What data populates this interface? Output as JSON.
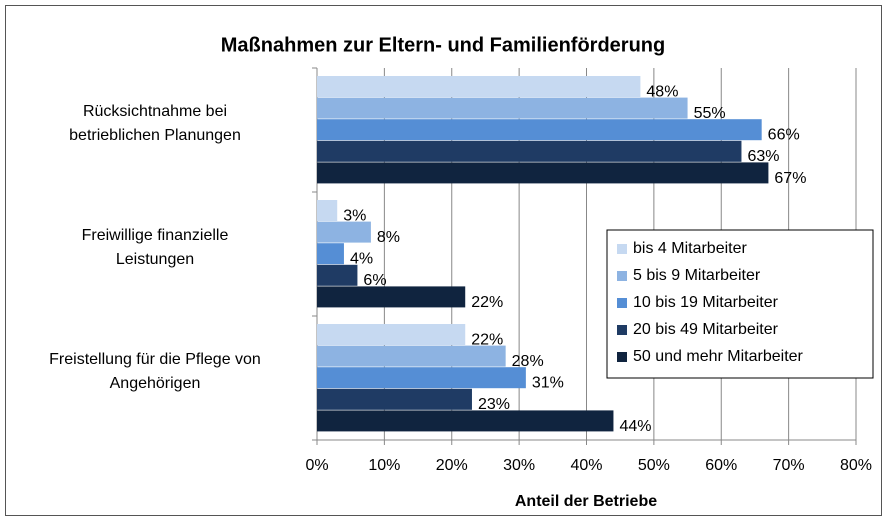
{
  "chart_data": {
    "type": "barh",
    "title": "Maßnahmen zur Eltern- und Familienförderung",
    "x_label": "Anteil der Betriebe",
    "categories": [
      "Rücksichtnahme bei\nbetrieblichen Planungen",
      "Freiwillige finanzielle\nLeistungen",
      "Freistellung für die Pflege von\nAngehörigen"
    ],
    "series": [
      {
        "name": "bis 4 Mitarbeiter",
        "color": "#c6d9f1",
        "values": [
          48,
          3,
          22
        ],
        "value_labels": [
          "48%",
          "3%",
          "22%"
        ]
      },
      {
        "name": "5 bis 9 Mitarbeiter",
        "color": "#8db3e2",
        "values": [
          55,
          8,
          28
        ],
        "value_labels": [
          "55%",
          "8%",
          "28%"
        ]
      },
      {
        "name": "10 bis 19 Mitarbeiter",
        "color": "#558ed5",
        "values": [
          66,
          4,
          31
        ],
        "value_labels": [
          "66%",
          "4%",
          "31%"
        ]
      },
      {
        "name": "20 bis 49 Mitarbeiter",
        "color": "#1f3b64",
        "values": [
          63,
          6,
          23
        ],
        "value_labels": [
          "63%",
          "6%",
          "23%"
        ]
      },
      {
        "name": "50 und mehr Mitarbeiter",
        "color": "#10243f",
        "values": [
          67,
          22,
          44
        ],
        "value_labels": [
          "67%",
          "22%",
          "44%"
        ]
      }
    ],
    "xlim": [
      0,
      80
    ],
    "xticks": [
      {
        "value": 0,
        "label": "0%"
      },
      {
        "value": 10,
        "label": "10%"
      },
      {
        "value": 20,
        "label": "20%"
      },
      {
        "value": 30,
        "label": "30%"
      },
      {
        "value": 40,
        "label": "40%"
      },
      {
        "value": 50,
        "label": "50%"
      },
      {
        "value": 60,
        "label": "60%"
      },
      {
        "value": 70,
        "label": "70%"
      },
      {
        "value": 80,
        "label": "80%"
      }
    ],
    "grid": true,
    "legend": "right"
  }
}
